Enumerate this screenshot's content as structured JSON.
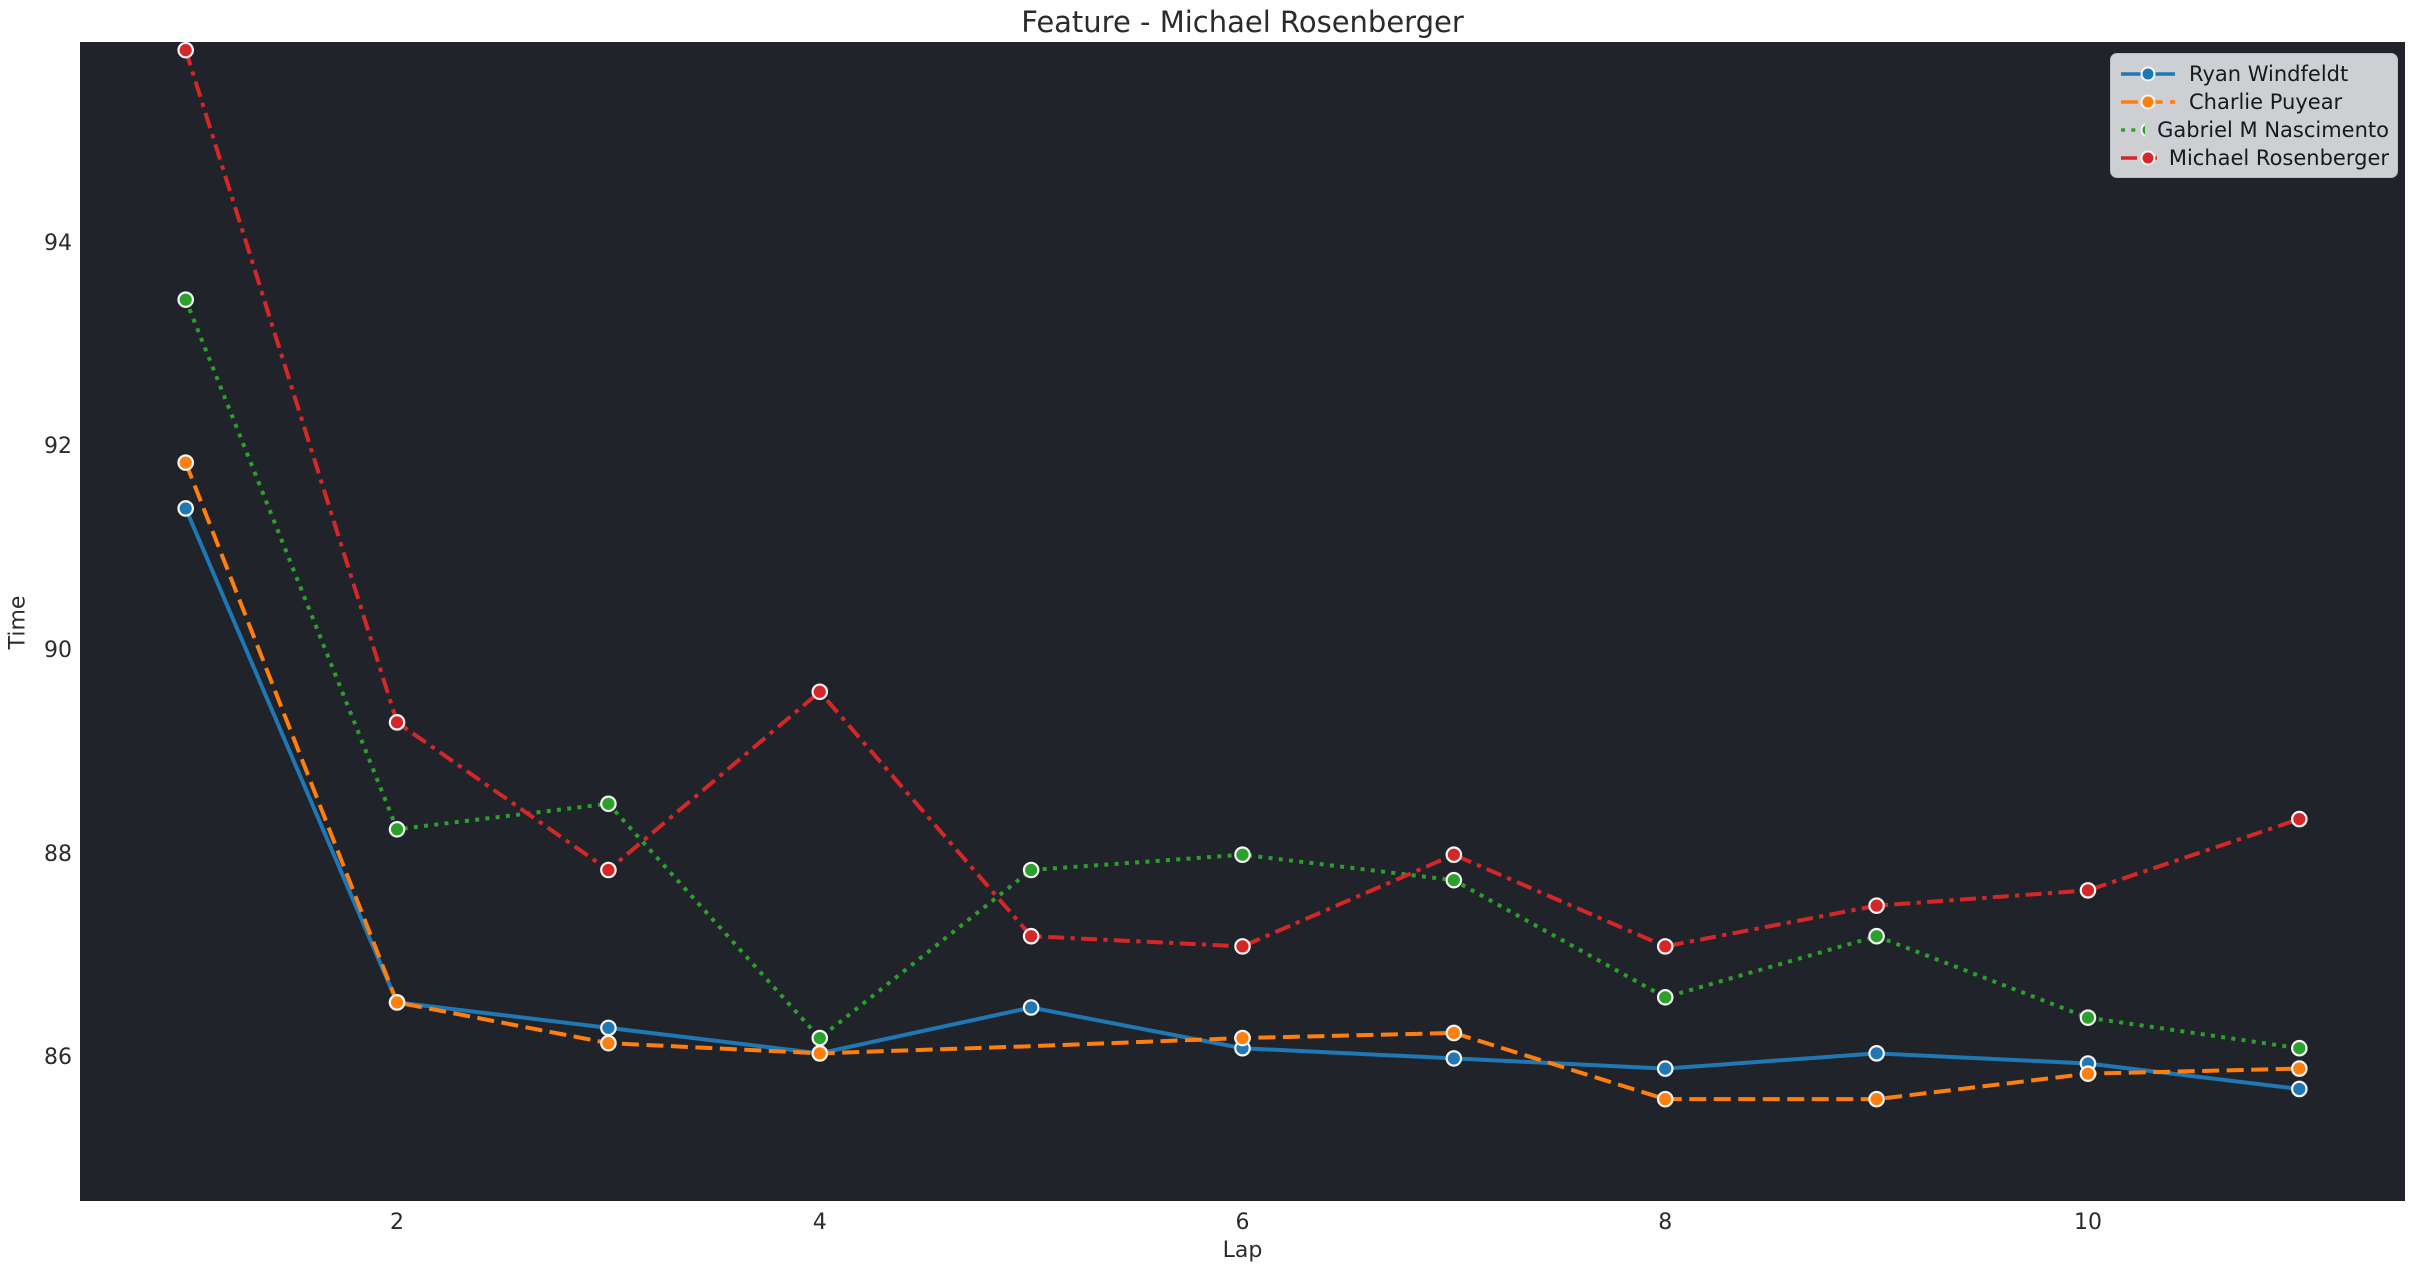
{
  "chart_data": {
    "type": "line",
    "title": "Feature - Michael Rosenberger",
    "xlabel": "Lap",
    "ylabel": "Time",
    "x": [
      1,
      2,
      3,
      4,
      5,
      6,
      7,
      8,
      9,
      10,
      11
    ],
    "xticks": [
      2,
      4,
      6,
      8,
      10
    ],
    "yticks": [
      86,
      88,
      90,
      92,
      94
    ],
    "xlim": [
      0.5,
      11.5
    ],
    "ylim": [
      84.6,
      95.98
    ],
    "grid": false,
    "legend_position": "upper right",
    "figure_background": "#ffffff",
    "plot_background": "#20242a",
    "marker": "circle",
    "marker_edge_color": "#f5f5f5",
    "series": [
      {
        "name": "Ryan Windfeldt",
        "color": "#1f77b4",
        "linestyle": "solid",
        "values": [
          91.4,
          86.55,
          86.3,
          86.05,
          86.5,
          86.1,
          86.0,
          85.9,
          86.05,
          85.95,
          85.7
        ]
      },
      {
        "name": "Charlie Puyear",
        "color": "#ff7f0e",
        "linestyle": "dashed",
        "no_marker_x": [
          5
        ],
        "values": [
          91.85,
          86.55,
          86.15,
          86.05,
          86.12,
          86.2,
          86.25,
          85.6,
          85.6,
          85.85,
          85.9
        ]
      },
      {
        "name": "Gabriel M Nascimento",
        "color": "#2ca02c",
        "linestyle": "dotted",
        "values": [
          93.45,
          88.25,
          88.5,
          86.2,
          87.85,
          88.0,
          87.75,
          86.6,
          87.2,
          86.4,
          86.1
        ]
      },
      {
        "name": "Michael Rosenberger",
        "color": "#d62728",
        "linestyle": "dashdot",
        "values": [
          95.9,
          89.3,
          87.85,
          89.6,
          87.2,
          87.1,
          88.0,
          87.1,
          87.5,
          87.65,
          88.35
        ]
      }
    ]
  }
}
